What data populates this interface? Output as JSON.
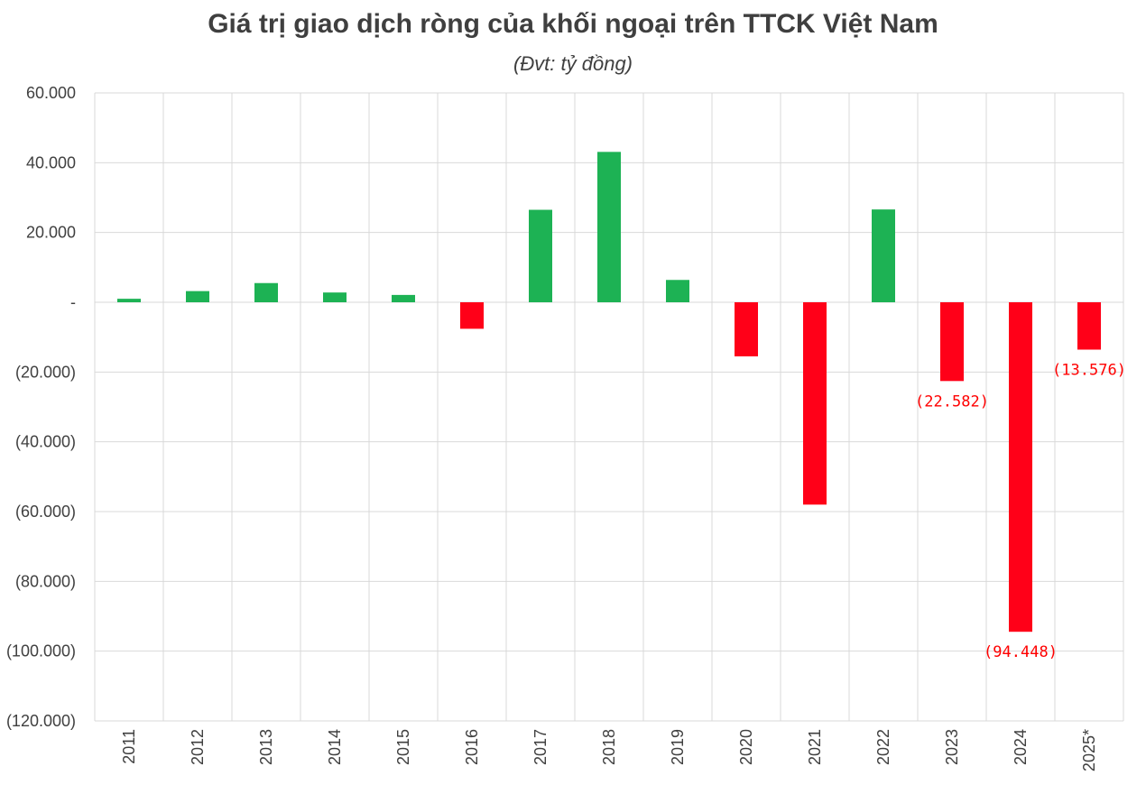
{
  "chart_data": {
    "type": "bar",
    "title": "Giá trị giao dịch ròng của khối ngoại trên TTCK Việt Nam",
    "subtitle": "(Đvt: tỷ đồng)",
    "xlabel": "",
    "ylabel": "",
    "categories": [
      "2011",
      "2012",
      "2013",
      "2014",
      "2015",
      "2016",
      "2017",
      "2018",
      "2019",
      "2020",
      "2021",
      "2022",
      "2023",
      "2024",
      "2025*"
    ],
    "values": [
      1000,
      3200,
      5500,
      2800,
      2100,
      -7600,
      26500,
      43100,
      6400,
      -15500,
      -58000,
      26600,
      -22582,
      -94448,
      -13576
    ],
    "ylim": [
      -120000,
      60000
    ],
    "yticks": [
      60000,
      40000,
      20000,
      0,
      -20000,
      -40000,
      -60000,
      -80000,
      -100000,
      -120000
    ],
    "ytick_labels": [
      "60.000",
      "40.000",
      "20.000",
      "-",
      "(20.000)",
      "(40.000)",
      "(60.000)",
      "(80.000)",
      "(100.000)",
      "(120.000)"
    ],
    "data_labels": [
      {
        "category": "2023",
        "text": "(22.582)"
      },
      {
        "category": "2024",
        "text": "(94.448)"
      },
      {
        "category": "2025*",
        "text": "(13.576)"
      }
    ],
    "grid": true,
    "legend": "none",
    "colors": {
      "positive": "#1db254",
      "negative": "#ff0018",
      "grid": "#d9d9d9",
      "axis_text": "#404040",
      "data_label": "#ff0000"
    }
  }
}
